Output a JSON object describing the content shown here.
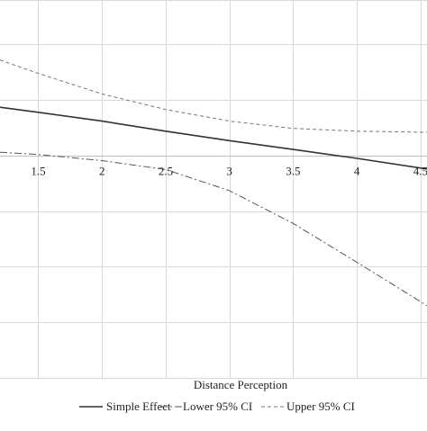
{
  "chart_data": {
    "type": "line",
    "xlabel": "Distance Perception",
    "ylabel": "",
    "xlim": [
      1.2,
      4.55
    ],
    "ylim": [
      -0.4,
      0.28
    ],
    "x_ticks": [
      1.5,
      2,
      2.5,
      3,
      3.5,
      4,
      4.5
    ],
    "x_tick_labels": [
      "1.5",
      "2",
      "2.5",
      "3",
      "3.5",
      "4",
      "4.5"
    ],
    "y_gridlines": [
      -0.4,
      -0.3,
      -0.2,
      -0.1,
      0,
      0.1,
      0.2
    ],
    "grid": true,
    "legend_position": "bottom",
    "series": [
      {
        "name": "Simple Effect",
        "style": "solid",
        "color": "#333333",
        "x": [
          1.2,
          1.5,
          2,
          2.5,
          3,
          3.5,
          4,
          4.55
        ],
        "y": [
          0.087,
          0.078,
          0.062,
          0.044,
          0.027,
          0.011,
          -0.005,
          -0.024
        ]
      },
      {
        "name": "Lower 95% CI",
        "style": "dashdot",
        "color": "#555555",
        "x": [
          1.2,
          1.5,
          2,
          2.5,
          3,
          3.5,
          4,
          4.55
        ],
        "y": [
          0.006,
          0.002,
          -0.009,
          -0.025,
          -0.063,
          -0.122,
          -0.192,
          -0.27
        ]
      },
      {
        "name": "Upper 95% CI",
        "style": "dashed",
        "color": "#777777",
        "x": [
          1.2,
          1.5,
          2,
          2.5,
          3,
          3.5,
          4,
          4.55
        ],
        "y": [
          0.172,
          0.148,
          0.111,
          0.083,
          0.062,
          0.049,
          0.044,
          0.042
        ]
      }
    ]
  }
}
